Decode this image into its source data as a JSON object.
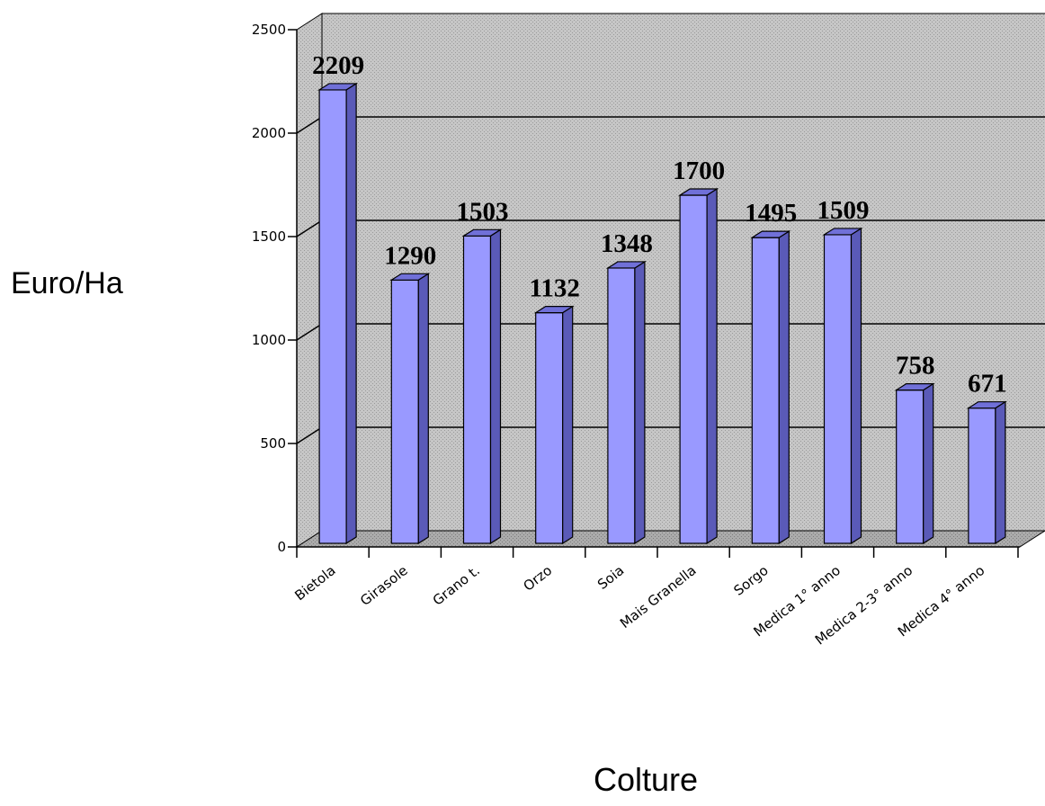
{
  "chart_data": {
    "type": "bar",
    "title": "",
    "xlabel": "Colture",
    "ylabel": "Euro/Ha",
    "categories": [
      "Bietola",
      "Girasole",
      "Grano t.",
      "Orzo",
      "Soia",
      "Mais Granella",
      "Sorgo",
      "Medica 1° anno",
      "Medica 2-3° anno",
      "Medica 4° anno"
    ],
    "values": [
      2209,
      1290,
      1503,
      1132,
      1348,
      1700,
      1495,
      1509,
      758,
      671
    ],
    "data_labels": [
      "2209",
      "1290",
      "1503",
      "1132",
      "1348",
      "1700",
      "1495",
      "1509",
      "758",
      "671"
    ],
    "ylim": [
      0,
      2500
    ],
    "yticks": [
      0,
      500,
      1000,
      1500,
      2000,
      2500
    ],
    "grid": true,
    "legend": "none",
    "colors": {
      "bar_front": "#9999ff",
      "bar_side": "#5a5ab8",
      "bar_top": "#7070d8",
      "wall": "#c4c4c4",
      "floor": "#a8a8a8",
      "gridline": "#000000"
    }
  }
}
